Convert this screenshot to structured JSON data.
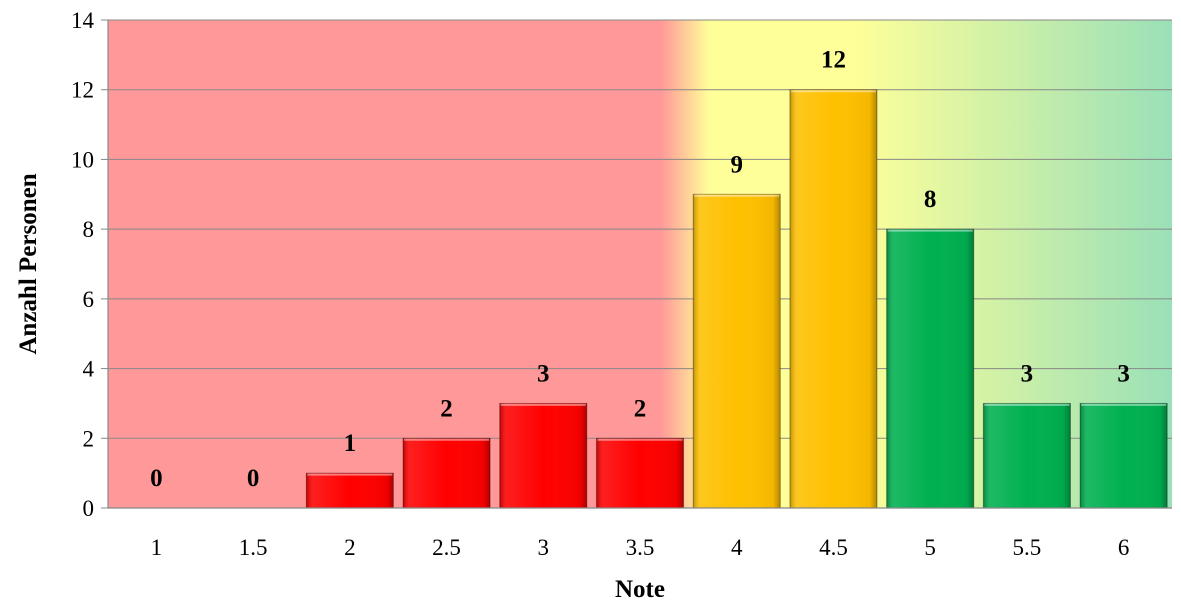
{
  "chart_data": {
    "type": "bar",
    "categories": [
      "1",
      "1.5",
      "2",
      "2.5",
      "3",
      "3.5",
      "4",
      "4.5",
      "5",
      "5.5",
      "6"
    ],
    "values": [
      0,
      0,
      1,
      2,
      3,
      2,
      9,
      12,
      8,
      3,
      3
    ],
    "data_labels": [
      "0",
      "0",
      "1",
      "2",
      "3",
      "2",
      "9",
      "12",
      "8",
      "3",
      "3"
    ],
    "xlabel": "Note",
    "ylabel": "Anzahl Personen",
    "ylim": [
      0,
      14
    ],
    "yticks": [
      "0",
      "2",
      "4",
      "6",
      "8",
      "10",
      "12",
      "14"
    ],
    "grid": true,
    "bar_colors": [
      "#ff0000",
      "#ff0000",
      "#ff0000",
      "#ff0000",
      "#ff0000",
      "#ff0000",
      "#ffc000",
      "#ffc000",
      "#00b050",
      "#00b050",
      "#00b050"
    ],
    "background_zones": {
      "fail_color": "#ff9999",
      "pass_color": "#ffff99",
      "good_color": "#99e0b8"
    }
  }
}
